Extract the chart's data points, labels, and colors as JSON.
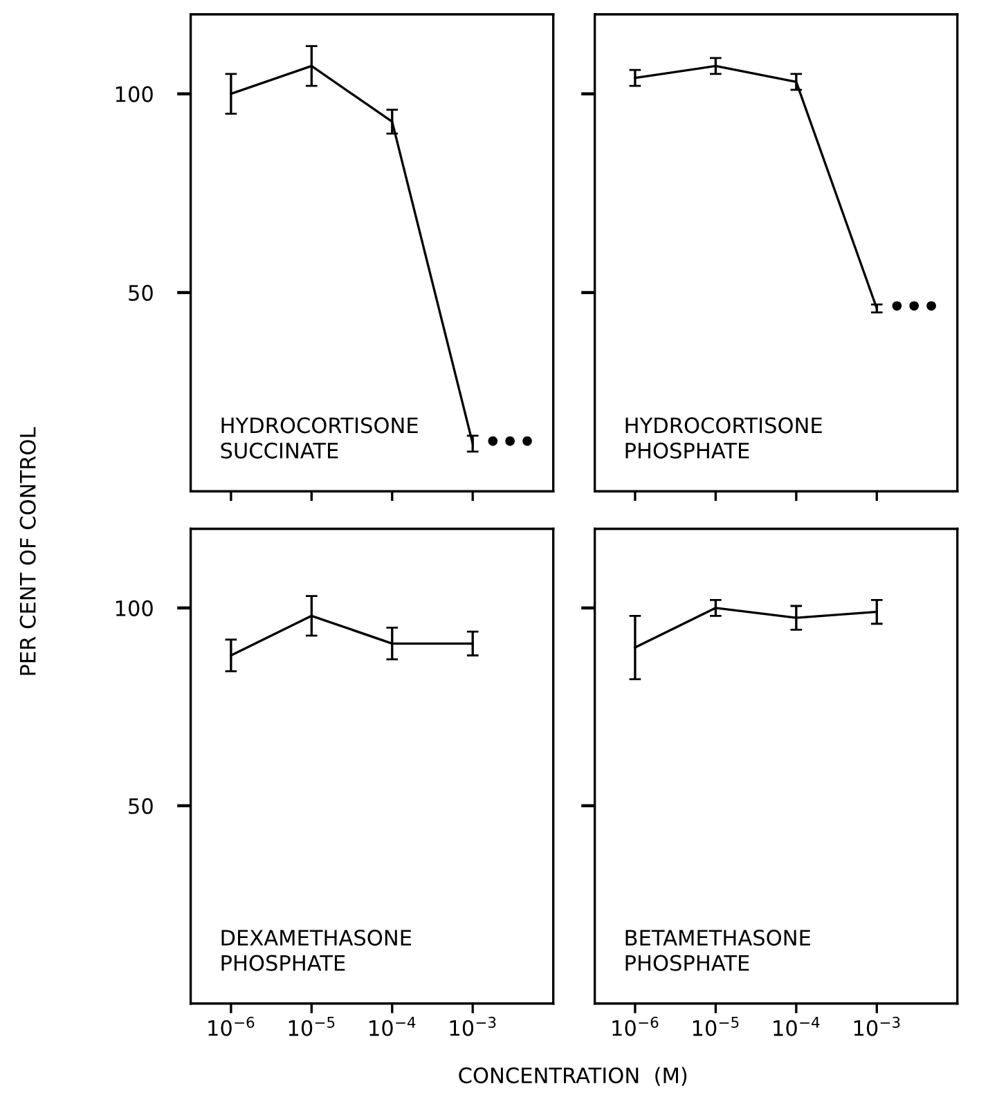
{
  "chart_data": [
    {
      "type": "line",
      "title": "HYDROCORTISONE\nSUCCINATE",
      "ylabel": "PER CENT OF CONTROL",
      "log": "x",
      "x": [
        1e-06,
        1e-05,
        0.0001,
        0.001
      ],
      "series": [
        {
          "color": "#000000",
          "values": [
            100,
            107,
            93,
            12
          ],
          "errors": [
            5,
            5,
            3,
            2
          ]
        }
      ],
      "annotations": [
        {
          "text": "•••",
          "x": 0.001,
          "y": 12
        }
      ],
      "xlim": [
        3.16e-07,
        0.01
      ],
      "ylim": [
        0,
        120
      ],
      "yticks": [
        50,
        100
      ],
      "xticks": [
        1e-06,
        1e-05,
        0.0001,
        0.001
      ],
      "tick_labels": "y",
      "marker": "none",
      "line_style": "solid",
      "grid": false,
      "legend": false
    },
    {
      "type": "line",
      "title": "HYDROCORTISONE\nPHOSPHATE",
      "log": "x",
      "x": [
        1e-06,
        1e-05,
        0.0001,
        0.001
      ],
      "series": [
        {
          "color": "#000000",
          "values": [
            104,
            107,
            103,
            46
          ],
          "errors": [
            2,
            2,
            2,
            1
          ]
        }
      ],
      "annotations": [
        {
          "text": "•••",
          "x": 0.001,
          "y": 46
        }
      ],
      "xlim": [
        3.16e-07,
        0.01
      ],
      "ylim": [
        0,
        120
      ],
      "yticks": [
        50,
        100
      ],
      "xticks": [
        1e-06,
        1e-05,
        0.0001,
        0.001
      ],
      "tick_labels": false,
      "marker": "none",
      "line_style": "solid",
      "grid": false,
      "legend": false
    },
    {
      "type": "line",
      "title": "DEXAMETHASONE\nPHOSPHATE",
      "xlabel": "CONCENTRATION  (M)",
      "log": "x",
      "x": [
        1e-06,
        1e-05,
        0.0001,
        0.001
      ],
      "series": [
        {
          "color": "#000000",
          "values": [
            88,
            98,
            91,
            91
          ],
          "errors": [
            4,
            5,
            4,
            3
          ]
        }
      ],
      "xlim": [
        3.16e-07,
        0.01
      ],
      "ylim": [
        0,
        120
      ],
      "yticks": [
        50,
        100
      ],
      "xticks": [
        {
          "value": 1e-06,
          "label": "10$^{−6}$"
        },
        {
          "value": 1e-05,
          "label": "10$^{−5}$"
        },
        {
          "value": 0.0001,
          "label": "10$^{−4}$"
        },
        {
          "value": 0.001,
          "label": "10$^{−3}$"
        }
      ],
      "marker": "none",
      "line_style": "solid",
      "grid": false,
      "legend": false
    },
    {
      "type": "line",
      "title": "BETAMETHASONE\nPHOSPHATE",
      "log": "x",
      "x": [
        1e-06,
        1e-05,
        0.0001,
        0.001
      ],
      "series": [
        {
          "color": "#000000",
          "values": [
            90,
            100,
            97.5,
            99
          ],
          "errors": [
            8,
            2,
            3,
            3
          ]
        }
      ],
      "xlim": [
        3.16e-07,
        0.01
      ],
      "ylim": [
        0,
        120
      ],
      "yticks": [
        50,
        100
      ],
      "xticks": [
        {
          "value": 1e-06,
          "label": "10$^{−6}$"
        },
        {
          "value": 1e-05,
          "label": "10$^{−5}$"
        },
        {
          "value": 0.0001,
          "label": "10$^{−4}$"
        },
        {
          "value": 0.001,
          "label": "10$^{−3}$"
        }
      ],
      "tick_labels": "x",
      "marker": "none",
      "line_style": "solid",
      "grid": false,
      "legend": false
    }
  ]
}
